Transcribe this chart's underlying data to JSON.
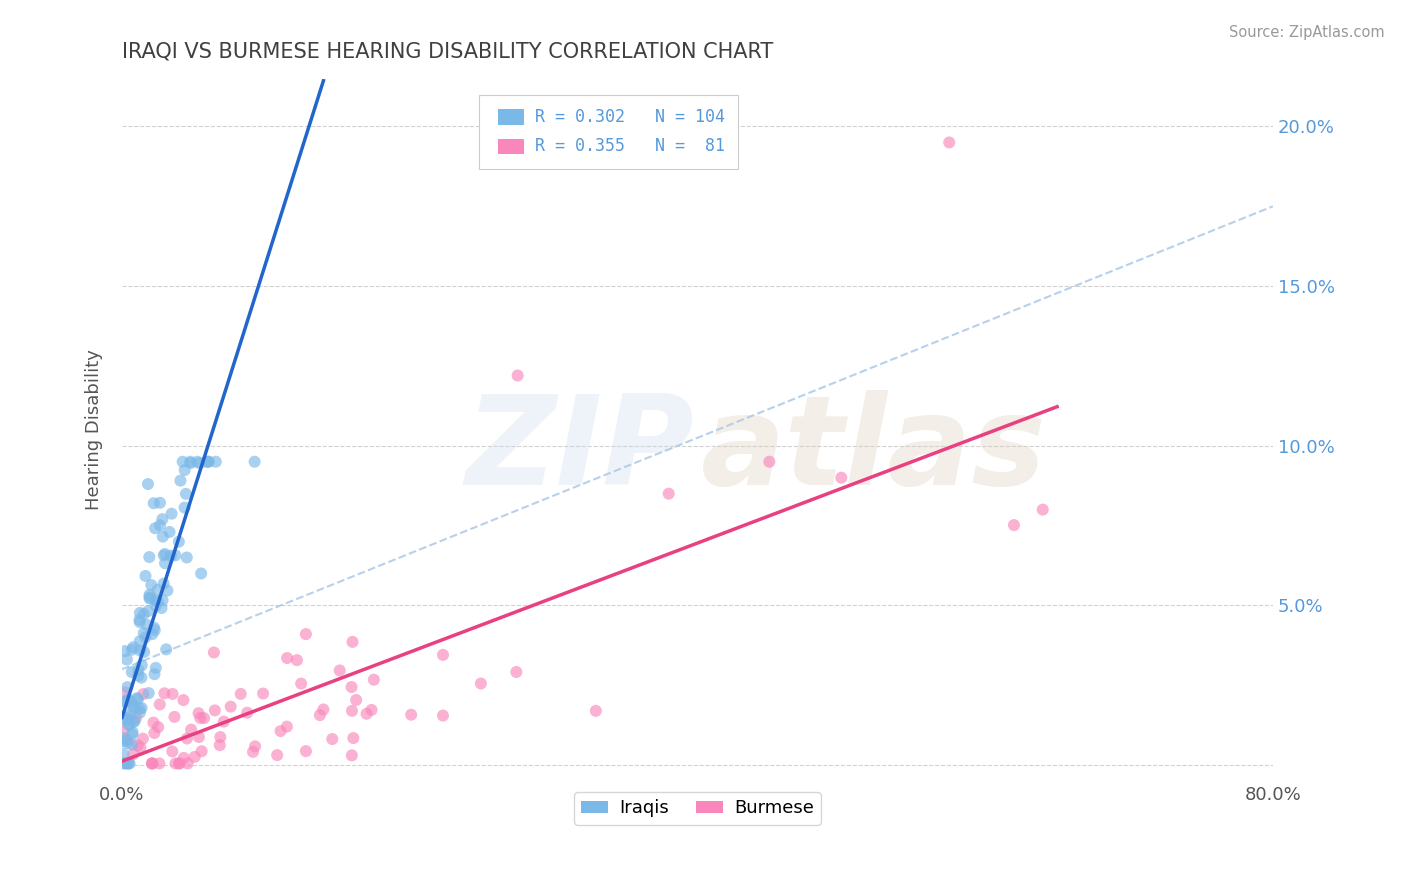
{
  "title": "IRAQI VS BURMESE HEARING DISABILITY CORRELATION CHART",
  "source_text": "Source: ZipAtlas.com",
  "ylabel": "Hearing Disability",
  "xlim": [
    0.0,
    0.8
  ],
  "ylim": [
    -0.005,
    0.215
  ],
  "iraqi_R": 0.302,
  "iraqi_N": 104,
  "burmese_R": 0.355,
  "burmese_N": 81,
  "iraqi_color": "#7ab8e8",
  "burmese_color": "#f987bb",
  "iraqi_line_color": "#2266cc",
  "burmese_line_color": "#e84080",
  "dash_line_color": "#b0cce8",
  "background_color": "#ffffff",
  "grid_color": "#cccccc",
  "title_color": "#404040",
  "ytick_color": "#5599dd",
  "legend_label_iraqi": "Iraqis",
  "legend_label_burmese": "Burmese"
}
